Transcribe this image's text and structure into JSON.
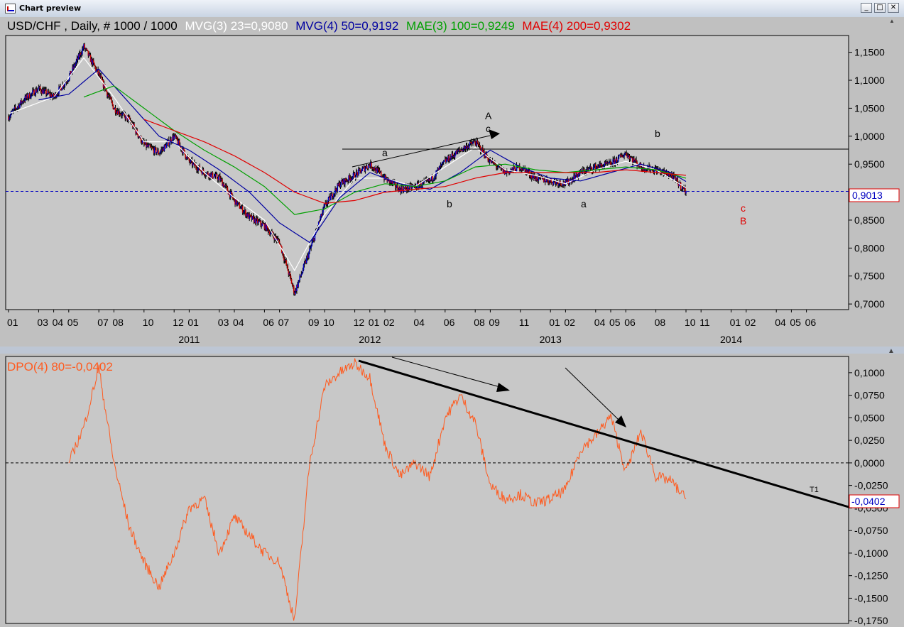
{
  "window": {
    "title": "Chart preview",
    "buttons": [
      "_",
      "□",
      "✕"
    ]
  },
  "main_panel": {
    "instrument": "USD/CHF",
    "period": "Daily",
    "bars": "# 1000 / 1000",
    "indicators": [
      {
        "label": "MVG(3) 23=0,9080",
        "color": "#ffffff"
      },
      {
        "label": "MVG(4) 50=0,9192",
        "color": "#0000a0"
      },
      {
        "label": "MAE(3) 100=0,9249",
        "color": "#00a000"
      },
      {
        "label": "MAE(4) 200=0,9302",
        "color": "#e00000"
      }
    ],
    "last_value_label": "0,9013",
    "wave_labels": [
      {
        "text": "A",
        "color": "#000000"
      },
      {
        "text": "c",
        "color": "#000000"
      },
      {
        "text": "a",
        "color": "#000000"
      },
      {
        "text": "b",
        "color": "#000000"
      },
      {
        "text": "a",
        "color": "#000000"
      },
      {
        "text": "b",
        "color": "#000000"
      },
      {
        "text": "c",
        "color": "#e00000"
      },
      {
        "text": "B",
        "color": "#e00000"
      }
    ]
  },
  "dpo_panel": {
    "label": "DPO(4) 80=-0,0402",
    "color": "#ff5a1e",
    "last_value_label": "-0,0402",
    "trendline_label": "T1"
  },
  "chart_data": [
    {
      "type": "line",
      "title": "USD/CHF , Daily, # 1000 / 1000",
      "ylim": [
        0.69,
        1.18
      ],
      "y_ticks": [
        "1,1500",
        "1,1000",
        "1,0500",
        "1,0000",
        "0,9500",
        "0,9000",
        "0,8500",
        "0,8000",
        "0,7500",
        "0,7000"
      ],
      "x_month_ticks": [
        "01",
        "03",
        "04",
        "05",
        "07",
        "08",
        "10",
        "12",
        "01",
        "03",
        "04",
        "06",
        "07",
        "09",
        "10",
        "12",
        "01",
        "02",
        "04",
        "06",
        "08",
        "09",
        "11",
        "01",
        "02",
        "04",
        "05",
        "06",
        "08",
        "10",
        "11",
        "01",
        "02",
        "04",
        "05",
        "06"
      ],
      "x_year_ticks": [
        "2011",
        "2012",
        "2013",
        "2014"
      ],
      "x_range": [
        "2010-01",
        "2014-07"
      ],
      "horizontal_line": 0.9013,
      "resistance_line": 0.983,
      "series": [
        {
          "name": "USD/CHF",
          "style": "candles",
          "x": [
            "2010-01",
            "2010-02",
            "2010-03",
            "2010-04",
            "2010-05",
            "2010-06",
            "2010-07",
            "2010-08",
            "2010-09",
            "2010-10",
            "2010-11",
            "2010-12",
            "2011-01",
            "2011-02",
            "2011-03",
            "2011-04",
            "2011-05",
            "2011-06",
            "2011-07",
            "2011-08",
            "2011-09",
            "2011-10",
            "2011-11",
            "2011-12",
            "2012-01",
            "2012-02",
            "2012-03",
            "2012-04",
            "2012-05",
            "2012-06",
            "2012-07",
            "2012-08",
            "2012-09",
            "2012-10",
            "2012-11",
            "2012-12",
            "2013-01",
            "2013-02",
            "2013-03",
            "2013-04",
            "2013-05",
            "2013-06",
            "2013-07",
            "2013-08",
            "2013-09",
            "2013-10"
          ],
          "values": [
            1.035,
            1.065,
            1.085,
            1.07,
            1.105,
            1.16,
            1.11,
            1.05,
            1.03,
            0.985,
            0.97,
            1.0,
            0.955,
            0.935,
            0.925,
            0.885,
            0.855,
            0.84,
            0.81,
            0.72,
            0.795,
            0.875,
            0.915,
            0.93,
            0.95,
            0.925,
            0.905,
            0.91,
            0.92,
            0.955,
            0.975,
            0.99,
            0.955,
            0.935,
            0.945,
            0.925,
            0.92,
            0.915,
            0.935,
            0.945,
            0.95,
            0.97,
            0.945,
            0.94,
            0.93,
            0.9013
          ]
        },
        {
          "name": "MVG(3) 23",
          "color": "#ffffff",
          "x": [
            "2010-01",
            "2010-04",
            "2010-06",
            "2010-08",
            "2010-10",
            "2010-12",
            "2011-02",
            "2011-04",
            "2011-06",
            "2011-08",
            "2011-10",
            "2011-12",
            "2012-02",
            "2012-04",
            "2012-06",
            "2012-08",
            "2012-10",
            "2012-12",
            "2013-02",
            "2013-04",
            "2013-06",
            "2013-08",
            "2013-10"
          ],
          "values": [
            1.04,
            1.07,
            1.14,
            1.07,
            0.99,
            0.99,
            0.935,
            0.89,
            0.85,
            0.76,
            0.86,
            0.925,
            0.925,
            0.91,
            0.945,
            0.98,
            0.94,
            0.93,
            0.915,
            0.94,
            0.955,
            0.94,
            0.908
          ]
        },
        {
          "name": "MVG(4) 50",
          "color": "#0000a0",
          "x": [
            "2010-03",
            "2010-05",
            "2010-07",
            "2010-09",
            "2010-11",
            "2011-01",
            "2011-03",
            "2011-05",
            "2011-07",
            "2011-09",
            "2011-11",
            "2012-01",
            "2012-03",
            "2012-05",
            "2012-07",
            "2012-09",
            "2012-11",
            "2013-01",
            "2013-03",
            "2013-05",
            "2013-07",
            "2013-09",
            "2013-10"
          ],
          "values": [
            1.065,
            1.075,
            1.12,
            1.06,
            1.0,
            0.975,
            0.94,
            0.9,
            0.845,
            0.81,
            0.89,
            0.935,
            0.915,
            0.905,
            0.935,
            0.975,
            0.945,
            0.925,
            0.92,
            0.935,
            0.95,
            0.935,
            0.919
          ]
        },
        {
          "name": "MAE(3) 100",
          "color": "#00a000",
          "x": [
            "2010-06",
            "2010-08",
            "2010-10",
            "2010-12",
            "2011-02",
            "2011-04",
            "2011-06",
            "2011-08",
            "2011-10",
            "2011-12",
            "2012-02",
            "2012-04",
            "2012-06",
            "2012-08",
            "2012-10",
            "2012-12",
            "2013-02",
            "2013-04",
            "2013-06",
            "2013-08",
            "2013-10"
          ],
          "values": [
            1.07,
            1.09,
            1.05,
            1.01,
            0.975,
            0.945,
            0.91,
            0.86,
            0.87,
            0.9,
            0.915,
            0.91,
            0.92,
            0.945,
            0.95,
            0.94,
            0.935,
            0.94,
            0.945,
            0.94,
            0.925
          ]
        },
        {
          "name": "MAE(4) 200",
          "color": "#e00000",
          "x": [
            "2010-10",
            "2010-12",
            "2011-02",
            "2011-04",
            "2011-06",
            "2011-08",
            "2011-10",
            "2011-12",
            "2012-02",
            "2012-04",
            "2012-06",
            "2012-08",
            "2012-10",
            "2012-12",
            "2013-02",
            "2013-04",
            "2013-06",
            "2013-08",
            "2013-10"
          ],
          "values": [
            1.03,
            1.01,
            0.99,
            0.965,
            0.935,
            0.9,
            0.88,
            0.885,
            0.9,
            0.905,
            0.91,
            0.925,
            0.935,
            0.935,
            0.935,
            0.935,
            0.94,
            0.935,
            0.93
          ]
        }
      ]
    },
    {
      "type": "line",
      "title": "DPO(4) 80=-0,0402",
      "ylim": [
        -0.178,
        0.118
      ],
      "y_ticks": [
        "0,1000",
        "0,0750",
        "0,0500",
        "0,0250",
        "0,0000",
        "-0,0250",
        "-0,0500",
        "-0,0750",
        "-0,1000",
        "-0,1250",
        "-0,1500",
        "-0,1750"
      ],
      "zero_line": 0,
      "series": [
        {
          "name": "DPO(4) 80",
          "color": "#ff5a1e",
          "x": [
            "2010-05",
            "2010-06",
            "2010-07",
            "2010-08",
            "2010-09",
            "2010-10",
            "2010-11",
            "2010-12",
            "2011-01",
            "2011-02",
            "2011-03",
            "2011-04",
            "2011-05",
            "2011-06",
            "2011-07",
            "2011-08",
            "2011-09",
            "2011-10",
            "2011-11",
            "2011-12",
            "2012-01",
            "2012-02",
            "2012-03",
            "2012-04",
            "2012-05",
            "2012-06",
            "2012-07",
            "2012-08",
            "2012-09",
            "2012-10",
            "2012-11",
            "2012-12",
            "2013-01",
            "2013-02",
            "2013-03",
            "2013-04",
            "2013-05",
            "2013-06",
            "2013-07",
            "2013-08",
            "2013-09",
            "2013-10"
          ],
          "values": [
            0.0,
            0.04,
            0.105,
            0.0,
            -0.07,
            -0.11,
            -0.138,
            -0.1,
            -0.05,
            -0.04,
            -0.1,
            -0.06,
            -0.08,
            -0.1,
            -0.11,
            -0.175,
            0.0,
            0.085,
            0.1,
            0.11,
            0.095,
            0.02,
            -0.015,
            0.0,
            -0.015,
            0.05,
            0.075,
            0.045,
            -0.025,
            -0.04,
            -0.035,
            -0.045,
            -0.04,
            -0.03,
            0.015,
            0.03,
            0.052,
            -0.01,
            0.035,
            -0.015,
            -0.02,
            -0.04
          ]
        }
      ]
    }
  ]
}
